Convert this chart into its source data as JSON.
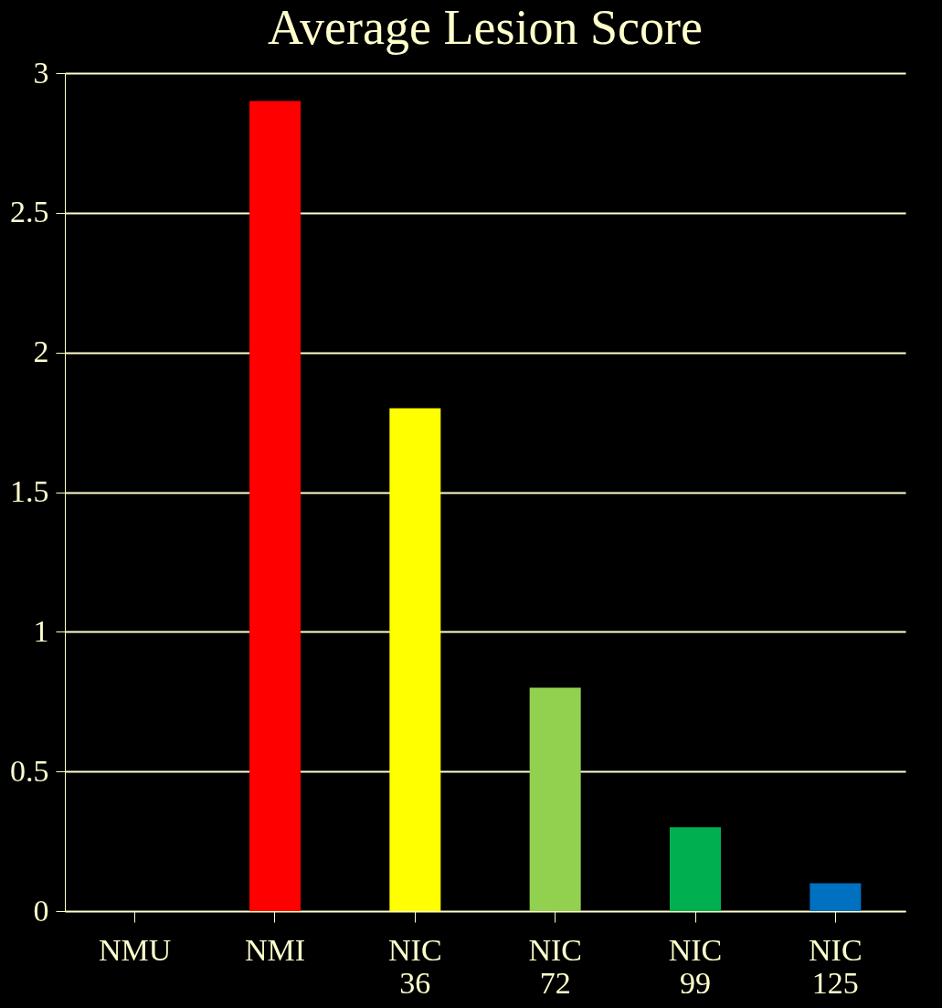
{
  "chart_data": {
    "type": "bar",
    "title": "Average Lesion Score",
    "categories": [
      "NMU",
      "NMI",
      "NIC\n36",
      "NIC\n72",
      "NIC\n99",
      "NIC\n125"
    ],
    "values": [
      0,
      2.9,
      1.8,
      0.8,
      0.3,
      0.1
    ],
    "colors": [
      "#c87533",
      "#ff0000",
      "#ffff00",
      "#92d050",
      "#00b050",
      "#0070c0"
    ],
    "ylim": [
      0,
      3
    ],
    "yticks": [
      0,
      0.5,
      1,
      1.5,
      2,
      2.5,
      3
    ],
    "grid": "y"
  }
}
